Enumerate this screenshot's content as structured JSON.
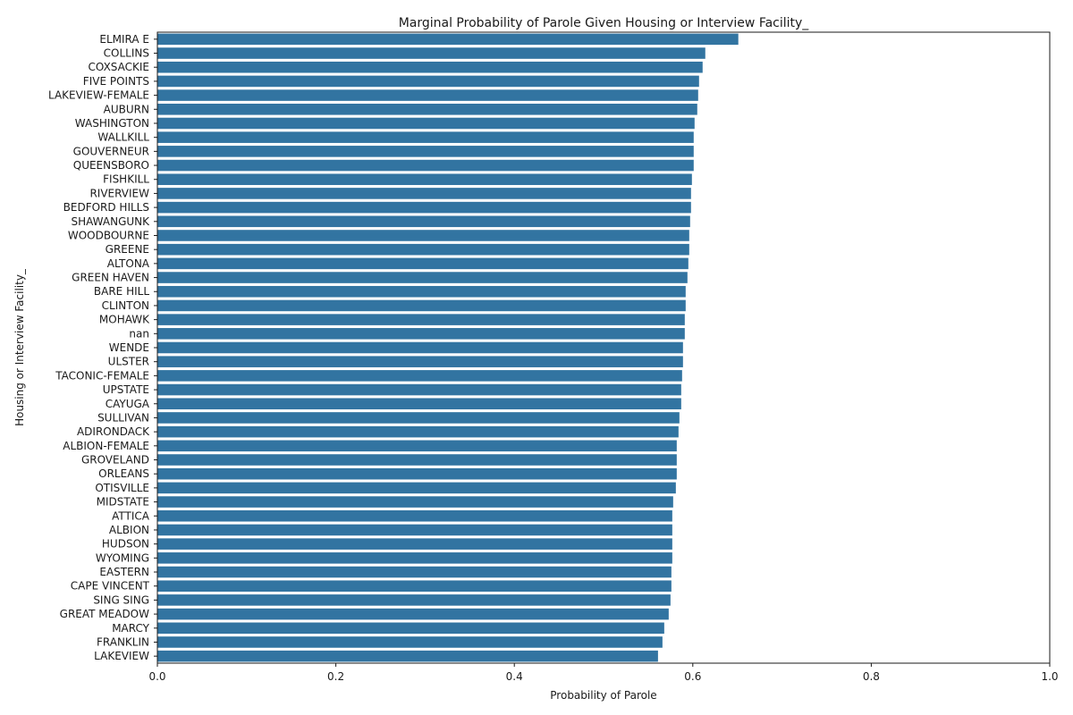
{
  "chart_data": {
    "type": "bar",
    "orientation": "horizontal",
    "title": "Marginal Probability of Parole Given Housing or Interview Facility_",
    "xlabel": "Probability of Parole",
    "ylabel": "Housing or Interview Facility_",
    "xlim": [
      0.0,
      1.0
    ],
    "xticks": [
      0.0,
      0.2,
      0.4,
      0.6,
      0.8,
      1.0
    ],
    "xtick_labels": [
      "0.0",
      "0.2",
      "0.4",
      "0.6",
      "0.8",
      "1.0"
    ],
    "grid": false,
    "bar_color": "#3274a1",
    "categories": [
      "ELMIRA E",
      "COLLINS",
      "COXSACKIE",
      "FIVE POINTS",
      "LAKEVIEW-FEMALE",
      "AUBURN",
      "WASHINGTON",
      "WALLKILL",
      "GOUVERNEUR",
      "QUEENSBORO",
      "FISHKILL",
      "RIVERVIEW",
      "BEDFORD HILLS",
      "SHAWANGUNK",
      "WOODBOURNE",
      "GREENE",
      "ALTONA",
      "GREEN HAVEN",
      "BARE HILL",
      "CLINTON",
      "MOHAWK",
      "nan",
      "WENDE",
      "ULSTER",
      "TACONIC-FEMALE",
      "UPSTATE",
      "CAYUGA",
      "SULLIVAN",
      "ADIRONDACK",
      "ALBION-FEMALE",
      "GROVELAND",
      "ORLEANS",
      "OTISVILLE",
      "MIDSTATE",
      "ATTICA",
      "ALBION",
      "HUDSON",
      "WYOMING",
      "EASTERN",
      "CAPE VINCENT",
      "SING SING",
      "GREAT MEADOW",
      "MARCY",
      "FRANKLIN",
      "LAKEVIEW"
    ],
    "values": [
      0.651,
      0.614,
      0.611,
      0.607,
      0.606,
      0.605,
      0.602,
      0.601,
      0.601,
      0.601,
      0.599,
      0.598,
      0.598,
      0.597,
      0.596,
      0.596,
      0.595,
      0.594,
      0.592,
      0.592,
      0.591,
      0.591,
      0.589,
      0.589,
      0.588,
      0.587,
      0.587,
      0.585,
      0.584,
      0.582,
      0.582,
      0.582,
      0.581,
      0.578,
      0.577,
      0.577,
      0.577,
      0.577,
      0.576,
      0.576,
      0.575,
      0.573,
      0.568,
      0.566,
      0.561
    ]
  }
}
